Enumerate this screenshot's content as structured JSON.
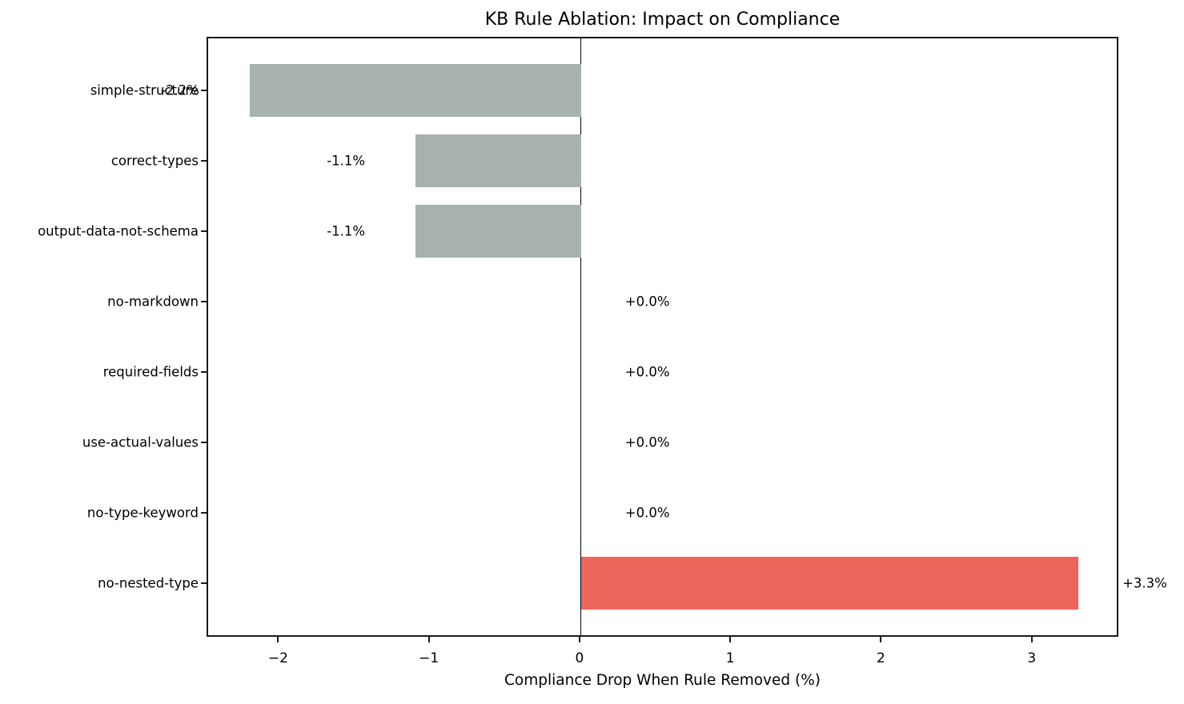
{
  "chart_data": {
    "type": "bar",
    "orientation": "horizontal",
    "title": "KB Rule Ablation: Impact on Compliance",
    "xlabel": "Compliance Drop When Rule Removed (%)",
    "ylabel": "",
    "categories": [
      "simple-structure",
      "correct-types",
      "output-data-not-schema",
      "no-markdown",
      "required-fields",
      "use-actual-values",
      "no-type-keyword",
      "no-nested-type"
    ],
    "values": [
      -2.2,
      -1.1,
      -1.1,
      0.0,
      0.0,
      0.0,
      0.0,
      3.3
    ],
    "bar_labels": [
      "-2.2%",
      "-1.1%",
      "-1.1%",
      "+0.0%",
      "+0.0%",
      "+0.0%",
      "+0.0%",
      "+3.3%"
    ],
    "xticks": [
      -2,
      -1,
      0,
      1,
      2,
      3
    ],
    "xtick_labels": [
      "−2",
      "−1",
      "0",
      "1",
      "2",
      "3"
    ],
    "xlim": [
      -2.475,
      3.575
    ],
    "grid": false,
    "legend": null,
    "colors": {
      "negative_bar": "#a6b1b0",
      "positive_bar": "#ec665b",
      "zero_line": "#000000",
      "spine": "#1a1a1a",
      "text": "#000000"
    }
  }
}
